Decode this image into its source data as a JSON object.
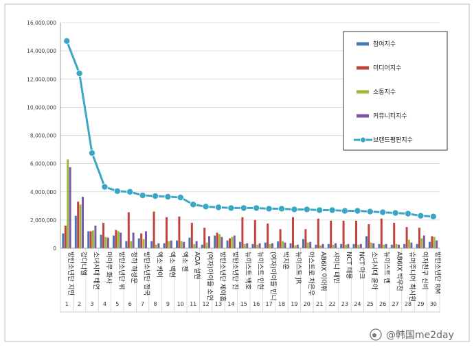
{
  "chart_data": {
    "type": "bar",
    "title": "",
    "xlabel": "",
    "ylabel": "",
    "ylim": [
      0,
      16000000
    ],
    "yticks": [
      0,
      2000000,
      4000000,
      6000000,
      8000000,
      10000000,
      12000000,
      14000000,
      16000000
    ],
    "ytick_labels": [
      "0",
      "2,000,000",
      "4,000,000",
      "6,000,000",
      "8,000,000",
      "10,000,000",
      "12,000,000",
      "14,000,000",
      "16,000,000"
    ],
    "grid": true,
    "legend_position": "top-right",
    "index_labels": [
      "1",
      "2",
      "3",
      "4",
      "5",
      "6",
      "7",
      "8",
      "9",
      "10",
      "11",
      "12",
      "13",
      "14",
      "15",
      "16",
      "17",
      "18",
      "19",
      "20",
      "21",
      "22",
      "23",
      "24",
      "25",
      "26",
      "27",
      "28",
      "29",
      "30"
    ],
    "categories": [
      "방탄소년단 지민",
      "강다니엘",
      "소녀시대 태연",
      "마마무 화사",
      "방탄소년단 뷔",
      "청하 하성운",
      "방탄소년단 정국",
      "엑소 카이",
      "엑소 백현",
      "엑소 첸",
      "AOA 설현",
      "(여자)아이들 소연",
      "방탄소년단 제이홉",
      "방탄소년단 진",
      "뉴이스트 백호",
      "뉴이스트 민현",
      "(여자)아이들 민니",
      "박지훈",
      "뉴이스트 JR",
      "아스트로 차은우",
      "AB6IX 이대휘",
      "샤이니 태민",
      "NCT 태용",
      "NCT 마크",
      "소녀시대 윤아",
      "뉴이스트 렌",
      "AB6IX 박우진",
      "슈퍼주니어 최시원",
      "여자친구 신비",
      "방탄소년단 RM"
    ],
    "series": [
      {
        "name": "참여지수",
        "color": "#4a74b5",
        "values": [
          1050000,
          2300000,
          1200000,
          950000,
          900000,
          500000,
          700000,
          500000,
          350000,
          550000,
          750000,
          250000,
          900000,
          550000,
          450000,
          300000,
          400000,
          480000,
          350000,
          650000,
          250000,
          300000,
          300000,
          300000,
          850000,
          300000,
          250000,
          300000,
          300000,
          450000
        ]
      },
      {
        "name": "미디어지수",
        "color": "#c0433f",
        "values": [
          1600000,
          3300000,
          1200000,
          1800000,
          1300000,
          2550000,
          1050000,
          2600000,
          2200000,
          2250000,
          1800000,
          1450000,
          1100000,
          700000,
          2200000,
          2000000,
          1750000,
          1350000,
          2200000,
          1350000,
          2100000,
          1950000,
          1950000,
          1950000,
          1700000,
          2100000,
          1800000,
          1500000,
          1450000,
          850000
        ]
      },
      {
        "name": "소통지수",
        "color": "#9cbb3e",
        "values": [
          6300000,
          3100000,
          1250000,
          800000,
          1200000,
          500000,
          650000,
          250000,
          500000,
          500000,
          300000,
          400000,
          1000000,
          800000,
          300000,
          250000,
          300000,
          500000,
          200000,
          400000,
          200000,
          250000,
          250000,
          250000,
          400000,
          250000,
          300000,
          600000,
          700000,
          800000
        ]
      },
      {
        "name": "커뮤니티지수",
        "color": "#7a5aa8",
        "values": [
          5750000,
          3650000,
          1600000,
          750000,
          1100000,
          1100000,
          1200000,
          350000,
          550000,
          450000,
          500000,
          850000,
          800000,
          900000,
          350000,
          350000,
          350000,
          400000,
          250000,
          450000,
          300000,
          350000,
          300000,
          300000,
          350000,
          300000,
          250000,
          400000,
          900000,
          550000
        ]
      }
    ],
    "line_series": {
      "name": "브랜드평판지수",
      "color": "#3aa6c4",
      "values": [
        14700000,
        12400000,
        6750000,
        4350000,
        4050000,
        4000000,
        3750000,
        3700000,
        3650000,
        3600000,
        3100000,
        2950000,
        2900000,
        2850000,
        2850000,
        2850000,
        2800000,
        2800000,
        2750000,
        2750000,
        2700000,
        2700000,
        2650000,
        2650000,
        2600000,
        2550000,
        2500000,
        2450000,
        2300000,
        2250000
      ]
    }
  },
  "watermark": "@韩国me2day"
}
